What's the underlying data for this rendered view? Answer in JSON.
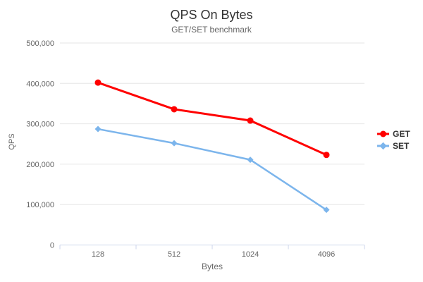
{
  "chart_data": {
    "type": "line",
    "title": "QPS On Bytes",
    "subtitle": "GET/SET benchmark",
    "xlabel": "Bytes",
    "ylabel": "QPS",
    "categories": [
      "128",
      "512",
      "1024",
      "4096"
    ],
    "series": [
      {
        "name": "GET",
        "color": "#ff0000",
        "marker": "circle",
        "values": [
          402000,
          336000,
          308000,
          223000
        ]
      },
      {
        "name": "SET",
        "color": "#7cb5ec",
        "marker": "diamond",
        "values": [
          287000,
          252000,
          211000,
          87000
        ]
      }
    ],
    "ylim": [
      0,
      500000
    ],
    "ytick_step": 100000,
    "yticklabels": [
      "0",
      "100,000",
      "200,000",
      "300,000",
      "400,000",
      "500,000"
    ],
    "grid": true,
    "legend_position": "right"
  },
  "colors": {
    "title_text": "#333333",
    "muted_text": "#666666",
    "gridline": "#e6e6e6",
    "axis_line": "#ccd6eb",
    "background": "#ffffff"
  }
}
